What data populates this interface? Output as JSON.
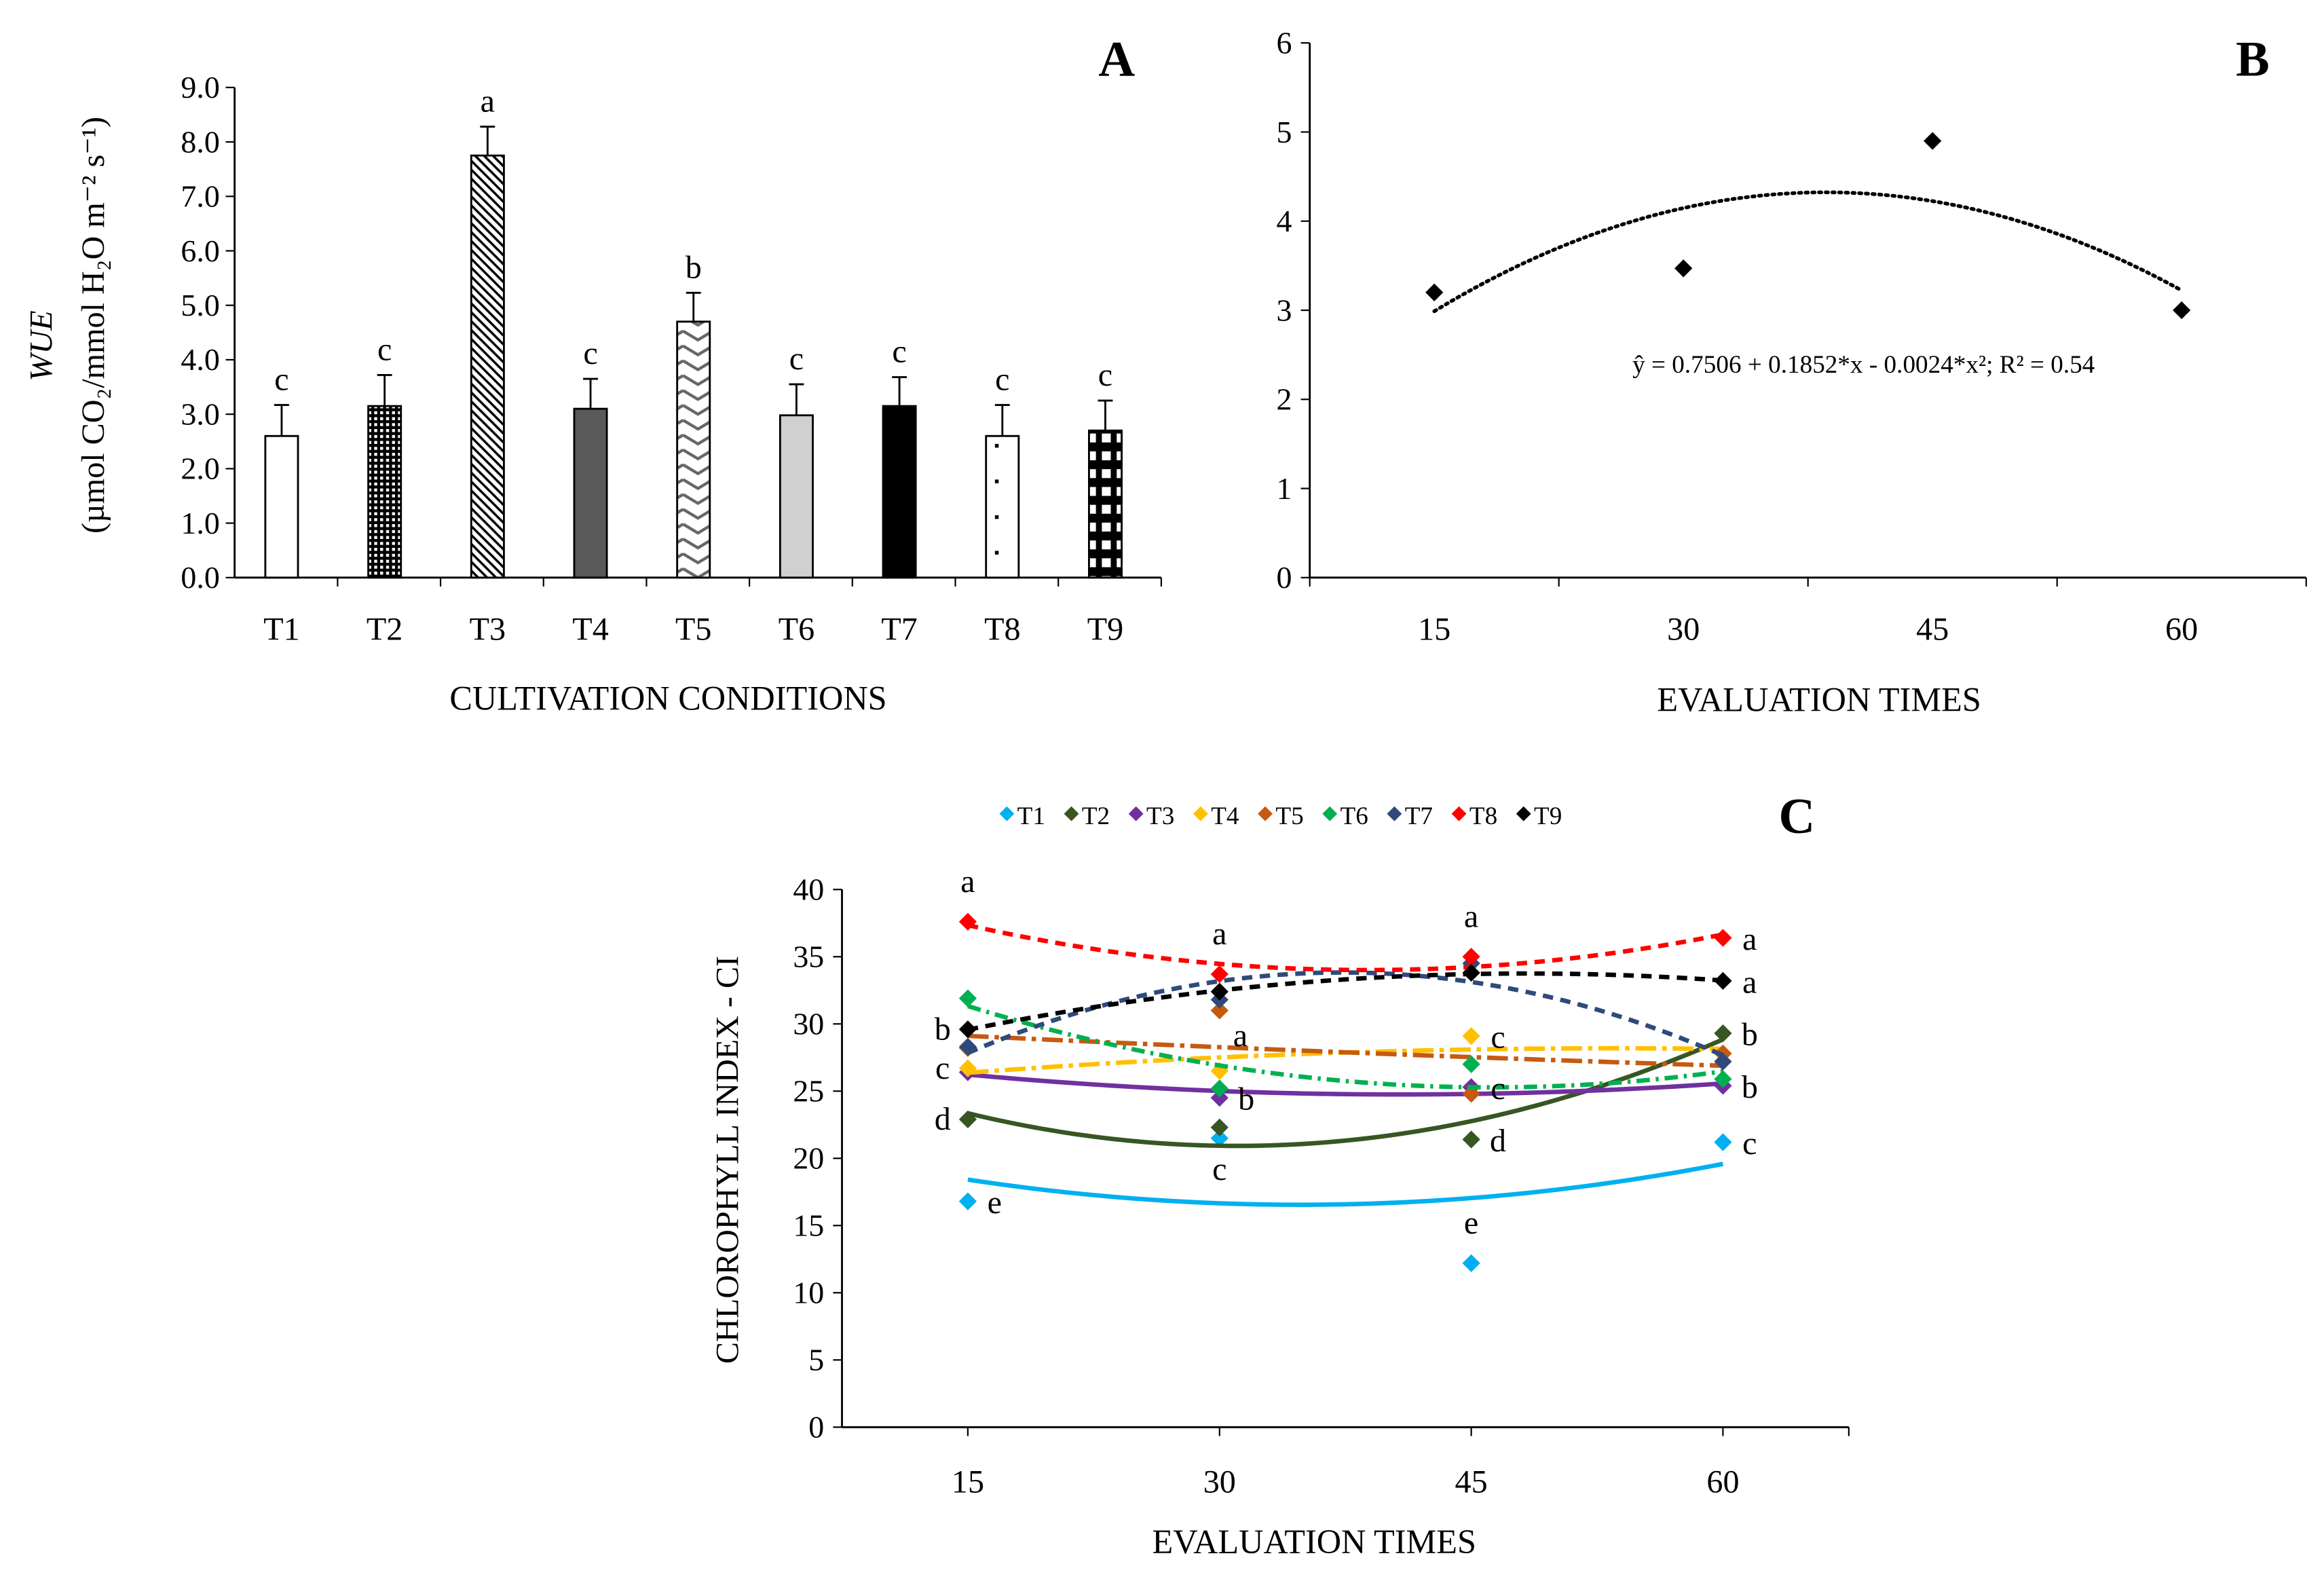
{
  "chart_data": [
    {
      "type": "bar",
      "panel_label": "A",
      "xlabel": "CULTIVATION CONDITIONS",
      "ylabel_line1": "WUE",
      "ylabel_line2": "(µmol CO₂/mmol H₂O m⁻² s⁻¹)",
      "categories": [
        "T1",
        "T2",
        "T3",
        "T4",
        "T5",
        "T6",
        "T7",
        "T8",
        "T9"
      ],
      "values": [
        2.6,
        3.15,
        7.75,
        3.1,
        4.7,
        2.98,
        3.15,
        2.6,
        2.7
      ],
      "error": [
        0.57,
        0.57,
        0.53,
        0.55,
        0.53,
        0.57,
        0.53,
        0.57,
        0.55
      ],
      "letters": [
        "c",
        "c",
        "a",
        "c",
        "b",
        "c",
        "c",
        "c",
        "c"
      ],
      "fills": [
        "white",
        "dense-dots",
        "diagonal-stripes",
        "dark-gray",
        "zigzag",
        "light-gray",
        "black",
        "sparse-dots",
        "brick-grid"
      ],
      "ylim": [
        0,
        9
      ],
      "yticks": [
        "0.0",
        "1.0",
        "2.0",
        "3.0",
        "4.0",
        "5.0",
        "6.0",
        "7.0",
        "8.0",
        "9.0"
      ],
      "grid": false
    },
    {
      "type": "scatter",
      "panel_label": "B",
      "xlabel": "EVALUATION TIMES",
      "x": [
        15,
        30,
        45,
        60
      ],
      "y": [
        3.2,
        3.47,
        4.9,
        3.0
      ],
      "xticks": [
        "15",
        "30",
        "45",
        "60"
      ],
      "yticks": [
        "0",
        "1",
        "2",
        "3",
        "4",
        "5",
        "6"
      ],
      "xlim": [
        7.5,
        67.5
      ],
      "ylim": [
        0,
        6
      ],
      "trendline": {
        "type": "polynomial-2",
        "coefficients": [
          0.7506,
          0.1852,
          -0.0024
        ],
        "style": "dotted"
      },
      "equation": "ŷ = 0.7506 + 0.1852*x - 0.0024*x²; R² = 0.54",
      "grid": false
    },
    {
      "type": "scatter",
      "panel_label": "C",
      "xlabel": "EVALUATION TIMES",
      "ylabel": "CHLOROPHYLL INDEX - CI",
      "x": [
        15,
        30,
        45,
        60
      ],
      "xticks": [
        "15",
        "30",
        "45",
        "60"
      ],
      "yticks": [
        "0",
        "5",
        "10",
        "15",
        "20",
        "25",
        "30",
        "35",
        "40"
      ],
      "xlim": [
        7.5,
        67.5
      ],
      "ylim": [
        0,
        40
      ],
      "legend_position": "top",
      "grid": false,
      "series": [
        {
          "name": "T1",
          "color": "#00b0f0",
          "dash": "solid",
          "values": [
            16.8,
            21.5,
            12.2,
            21.2
          ]
        },
        {
          "name": "T2",
          "color": "#375623",
          "dash": "solid",
          "values": [
            22.9,
            22.3,
            21.4,
            29.3
          ]
        },
        {
          "name": "T3",
          "color": "#7030a0",
          "dash": "solid",
          "values": [
            26.4,
            24.5,
            25.3,
            25.4
          ]
        },
        {
          "name": "T4",
          "color": "#ffc000",
          "dash": "long-dash-dot",
          "values": [
            26.7,
            26.5,
            29.1,
            27.8
          ]
        },
        {
          "name": "T5",
          "color": "#c55a11",
          "dash": "long-dash-dot",
          "values": [
            28.2,
            31.0,
            24.8,
            27.8
          ]
        },
        {
          "name": "T6",
          "color": "#00b050",
          "dash": "dash-dot",
          "values": [
            31.9,
            25.2,
            27.0,
            25.9
          ]
        },
        {
          "name": "T7",
          "color": "#2f4a7a",
          "dash": "dashed",
          "values": [
            28.3,
            31.8,
            34.5,
            27.2
          ]
        },
        {
          "name": "T8",
          "color": "#ff0000",
          "dash": "dashed",
          "values": [
            37.6,
            33.7,
            35.0,
            36.4
          ]
        },
        {
          "name": "T9",
          "color": "#000000",
          "dash": "dashed",
          "values": [
            29.6,
            32.4,
            33.8,
            33.2
          ]
        }
      ],
      "annotations": [
        {
          "x": 15,
          "y": 37.6,
          "text": "a",
          "pos": "above"
        },
        {
          "x": 15,
          "y": 29.6,
          "text": "b",
          "pos": "left"
        },
        {
          "x": 15,
          "y": 26.7,
          "text": "c",
          "pos": "left"
        },
        {
          "x": 15,
          "y": 22.9,
          "text": "d",
          "pos": "left"
        },
        {
          "x": 15,
          "y": 16.8,
          "text": "e",
          "pos": "right"
        },
        {
          "x": 30,
          "y": 33.7,
          "text": "a",
          "pos": "above"
        },
        {
          "x": 30,
          "y": 31.0,
          "text": "a",
          "pos": "below-right"
        },
        {
          "x": 30,
          "y": 24.5,
          "text": "b",
          "pos": "right"
        },
        {
          "x": 30,
          "y": 21.5,
          "text": "c",
          "pos": "below"
        },
        {
          "x": 45,
          "y": 35.0,
          "text": "a",
          "pos": "above"
        },
        {
          "x": 45,
          "y": 29.1,
          "text": "c",
          "pos": "right"
        },
        {
          "x": 45,
          "y": 25.3,
          "text": "c",
          "pos": "right"
        },
        {
          "x": 45,
          "y": 21.4,
          "text": "d",
          "pos": "right"
        },
        {
          "x": 45,
          "y": 12.2,
          "text": "e",
          "pos": "above"
        },
        {
          "x": 60,
          "y": 36.4,
          "text": "a",
          "pos": "right"
        },
        {
          "x": 60,
          "y": 33.2,
          "text": "a",
          "pos": "right"
        },
        {
          "x": 60,
          "y": 29.3,
          "text": "b",
          "pos": "right"
        },
        {
          "x": 60,
          "y": 25.4,
          "text": "b",
          "pos": "right"
        },
        {
          "x": 60,
          "y": 21.2,
          "text": "c",
          "pos": "right"
        }
      ]
    }
  ]
}
